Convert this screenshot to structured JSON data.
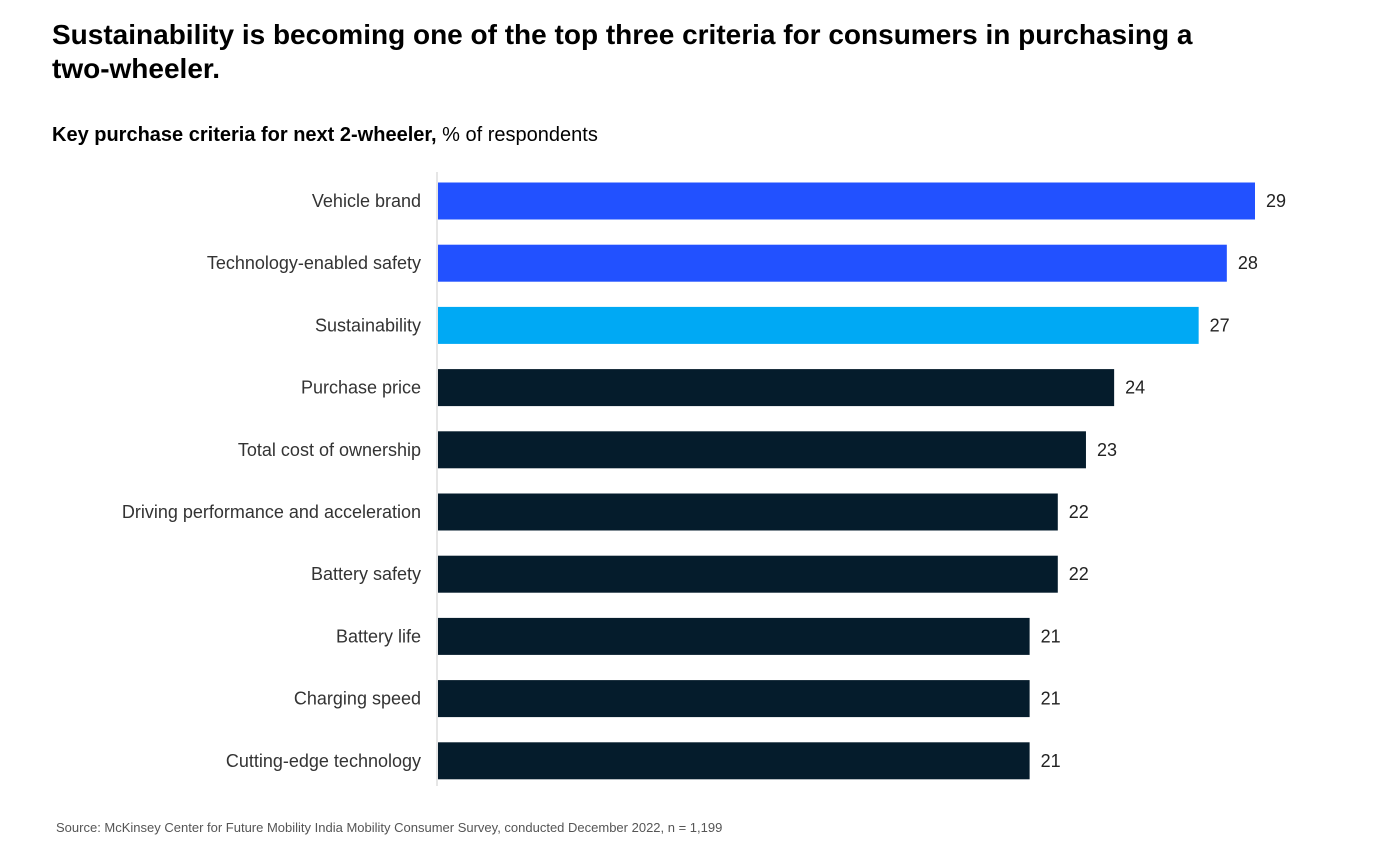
{
  "headline": "Sustainability is becoming one of the top three criteria for consumers in purchasing a two-wheeler.",
  "subtitle_bold": "Key purchase criteria for next 2-wheeler,",
  "subtitle_unit": " % of respondents",
  "source": "Source: McKinsey Center for Future Mobility India Mobility Consumer Survey, conducted December 2022, n = 1,199",
  "colors": {
    "top_bars": "#2251ff",
    "highlight": "#00a9f4",
    "other_bars": "#051c2c",
    "axis": "#cccccc"
  },
  "chart_data": {
    "type": "bar",
    "orientation": "horizontal",
    "title": "Sustainability is becoming one of the top three criteria for consumers in purchasing a two-wheeler.",
    "subtitle": "Key purchase criteria for next 2-wheeler, % of respondents",
    "unit": "% of respondents",
    "categories": [
      "Vehicle brand",
      "Technology-enabled safety",
      "Sustainability",
      "Purchase price",
      "Total cost of ownership",
      "Driving performance and acceleration",
      "Battery safety",
      "Battery life",
      "Charging speed",
      "Cutting-edge technology"
    ],
    "values": [
      29,
      28,
      27,
      24,
      23,
      22,
      22,
      21,
      21,
      21
    ],
    "bar_colors": [
      "#2251ff",
      "#2251ff",
      "#00a9f4",
      "#051c2c",
      "#051c2c",
      "#051c2c",
      "#051c2c",
      "#051c2c",
      "#051c2c",
      "#051c2c"
    ],
    "xlim": [
      0,
      29
    ],
    "grid": false,
    "legend": "none",
    "data_labels": true
  }
}
